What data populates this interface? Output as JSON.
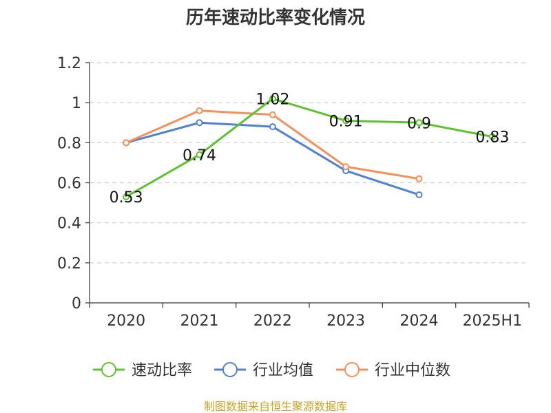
{
  "chart_data": {
    "type": "line",
    "title": "历年速动比率变化情况",
    "categories": [
      "2020",
      "2021",
      "2022",
      "2023",
      "2024",
      "2025H1"
    ],
    "ylim": [
      0,
      1.2
    ],
    "yticks": [
      "0",
      "0.2",
      "0.4",
      "0.6",
      "0.8",
      "1",
      "1.2"
    ],
    "grid": true,
    "legend_position": "bottom",
    "series": [
      {
        "name": "速动比率",
        "color": "#5cc22e",
        "values": [
          0.53,
          0.74,
          1.02,
          0.91,
          0.9,
          0.83
        ],
        "labels": [
          "0.53",
          "0.74",
          "1.02",
          "0.91",
          "0.9",
          "0.83"
        ]
      },
      {
        "name": "行业均值",
        "color": "#4f7fd6",
        "values": [
          0.8,
          0.9,
          0.88,
          0.66,
          0.54,
          null
        ]
      },
      {
        "name": "行业中位数",
        "color": "#f5905a",
        "values": [
          0.8,
          0.96,
          0.94,
          0.68,
          0.62,
          null
        ]
      }
    ],
    "source": "制图数据来自恒生聚源数据库"
  }
}
